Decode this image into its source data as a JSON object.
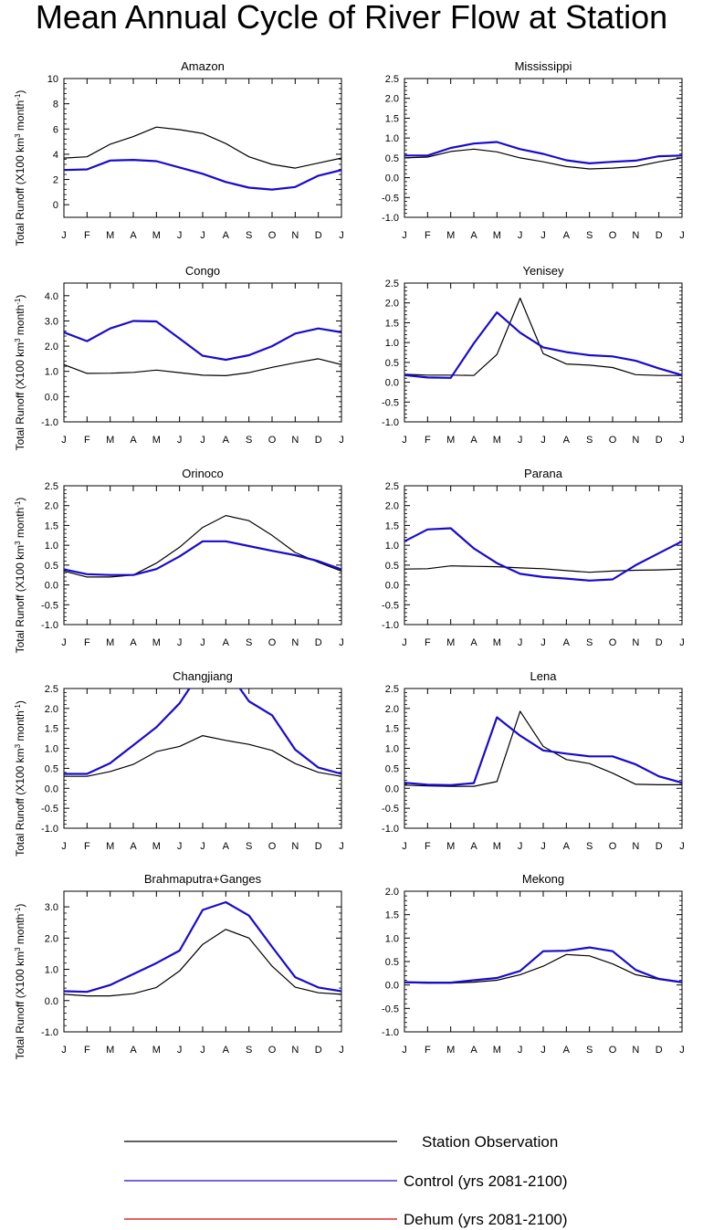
{
  "figure": {
    "title": "Mean Annual Cycle of River Flow at Station",
    "months": [
      "J",
      "F",
      "M",
      "A",
      "M",
      "J",
      "J",
      "A",
      "S",
      "O",
      "N",
      "D",
      "J"
    ],
    "legend": {
      "obs": "Station Observation",
      "control": "Control (yrs 2081-2100)",
      "dehum": "Dehum (yrs 2081-2100)"
    },
    "colors": {
      "obs": "#000000",
      "control": "#1a0acc",
      "dehum": "#e00000"
    }
  },
  "chart_data": [
    {
      "type": "line",
      "title": "Amazon",
      "ylabel": "Total Runoff (X100 km3 month-1)",
      "x": [
        "J",
        "F",
        "M",
        "A",
        "M",
        "J",
        "J",
        "A",
        "S",
        "O",
        "N",
        "D",
        "J"
      ],
      "ylim": [
        -1,
        10
      ],
      "yticks": [
        0,
        2,
        4,
        6,
        8,
        10
      ],
      "ytick_labels": [
        "0",
        "2",
        "4",
        "6",
        "8",
        "10"
      ],
      "series": [
        {
          "name": "Station Observation",
          "values": [
            3.7,
            3.8,
            4.8,
            5.4,
            6.15,
            5.95,
            5.65,
            4.85,
            3.8,
            3.2,
            2.9,
            3.3,
            3.7
          ]
        },
        {
          "name": "Control (yrs 2081-2100)",
          "values": [
            2.75,
            2.8,
            3.5,
            3.55,
            3.45,
            2.95,
            2.45,
            1.8,
            1.35,
            1.2,
            1.4,
            2.3,
            2.75
          ]
        }
      ]
    },
    {
      "type": "line",
      "title": "Mississippi",
      "ylabel": "",
      "x": [
        "J",
        "F",
        "M",
        "A",
        "M",
        "J",
        "J",
        "A",
        "S",
        "O",
        "N",
        "D",
        "J"
      ],
      "ylim": [
        -1,
        2.5
      ],
      "yticks": [
        -1,
        -0.5,
        0,
        0.5,
        1,
        1.5,
        2,
        2.5
      ],
      "ytick_labels": [
        "-1.0",
        "-0.5",
        "0.0",
        "0.5",
        "1.0",
        "1.5",
        "2.0",
        "2.5"
      ],
      "series": [
        {
          "name": "Station Observation",
          "values": [
            0.5,
            0.52,
            0.66,
            0.72,
            0.65,
            0.5,
            0.4,
            0.28,
            0.22,
            0.24,
            0.28,
            0.4,
            0.5
          ]
        },
        {
          "name": "Control (yrs 2081-2100)",
          "values": [
            0.56,
            0.56,
            0.75,
            0.86,
            0.9,
            0.72,
            0.6,
            0.44,
            0.36,
            0.4,
            0.43,
            0.54,
            0.56
          ]
        }
      ]
    },
    {
      "type": "line",
      "title": "Congo",
      "ylabel": "Total Runoff (X100 km3 month-1)",
      "x": [
        "J",
        "F",
        "M",
        "A",
        "M",
        "J",
        "J",
        "A",
        "S",
        "O",
        "N",
        "D",
        "J"
      ],
      "ylim": [
        -1,
        4.5
      ],
      "yticks": [
        -1,
        0,
        1,
        2,
        3,
        4
      ],
      "ytick_labels": [
        "-1.0",
        "0.0",
        "1.0",
        "2.0",
        "3.0",
        "4.0"
      ],
      "series": [
        {
          "name": "Station Observation",
          "values": [
            1.27,
            0.92,
            0.93,
            0.96,
            1.05,
            0.95,
            0.85,
            0.83,
            0.95,
            1.16,
            1.34,
            1.5,
            1.27
          ]
        },
        {
          "name": "Control (yrs 2081-2100)",
          "values": [
            2.55,
            2.2,
            2.7,
            3.0,
            2.98,
            2.3,
            1.62,
            1.46,
            1.64,
            2.0,
            2.5,
            2.7,
            2.55
          ]
        }
      ]
    },
    {
      "type": "line",
      "title": "Yenisey",
      "ylabel": "",
      "x": [
        "J",
        "F",
        "M",
        "A",
        "M",
        "J",
        "J",
        "A",
        "S",
        "O",
        "N",
        "D",
        "J"
      ],
      "ylim": [
        -1,
        2.5
      ],
      "yticks": [
        -1,
        -0.5,
        0,
        0.5,
        1,
        1.5,
        2,
        2.5
      ],
      "ytick_labels": [
        "-1.0",
        "-0.5",
        "0.0",
        "0.5",
        "1.0",
        "1.5",
        "2.0",
        "2.5"
      ],
      "series": [
        {
          "name": "Station Observation",
          "values": [
            0.2,
            0.18,
            0.18,
            0.17,
            0.7,
            2.12,
            0.72,
            0.46,
            0.43,
            0.37,
            0.19,
            0.17,
            0.17
          ]
        },
        {
          "name": "Control (yrs 2081-2100)",
          "values": [
            0.18,
            0.12,
            0.11,
            0.98,
            1.76,
            1.25,
            0.88,
            0.76,
            0.68,
            0.65,
            0.54,
            0.35,
            0.18
          ]
        }
      ]
    },
    {
      "type": "line",
      "title": "Orinoco",
      "ylabel": "Total Runoff (X100 km3 month-1)",
      "x": [
        "J",
        "F",
        "M",
        "A",
        "M",
        "J",
        "J",
        "A",
        "S",
        "O",
        "N",
        "D",
        "J"
      ],
      "ylim": [
        -1,
        2.5
      ],
      "yticks": [
        -1,
        -0.5,
        0,
        0.5,
        1,
        1.5,
        2,
        2.5
      ],
      "ytick_labels": [
        "-1.0",
        "-0.5",
        "0.0",
        "0.5",
        "1.0",
        "1.5",
        "2.0",
        "2.5"
      ],
      "series": [
        {
          "name": "Station Observation",
          "values": [
            0.35,
            0.2,
            0.2,
            0.25,
            0.55,
            0.95,
            1.45,
            1.75,
            1.62,
            1.25,
            0.82,
            0.57,
            0.35
          ]
        },
        {
          "name": "Control (yrs 2081-2100)",
          "values": [
            0.39,
            0.27,
            0.25,
            0.25,
            0.4,
            0.72,
            1.1,
            1.1,
            0.98,
            0.86,
            0.75,
            0.6,
            0.39
          ]
        }
      ]
    },
    {
      "type": "line",
      "title": "Parana",
      "ylabel": "",
      "x": [
        "J",
        "F",
        "M",
        "A",
        "M",
        "J",
        "J",
        "A",
        "S",
        "O",
        "N",
        "D",
        "J"
      ],
      "ylim": [
        -1,
        2.5
      ],
      "yticks": [
        -1,
        -0.5,
        0,
        0.5,
        1,
        1.5,
        2,
        2.5
      ],
      "ytick_labels": [
        "-1.0",
        "-0.5",
        "0.0",
        "0.5",
        "1.0",
        "1.5",
        "2.0",
        "2.5"
      ],
      "series": [
        {
          "name": "Station Observation",
          "values": [
            0.4,
            0.41,
            0.48,
            0.47,
            0.46,
            0.43,
            0.41,
            0.36,
            0.32,
            0.35,
            0.37,
            0.38,
            0.4
          ]
        },
        {
          "name": "Control (yrs 2081-2100)",
          "values": [
            1.1,
            1.4,
            1.43,
            0.92,
            0.55,
            0.28,
            0.2,
            0.16,
            0.11,
            0.14,
            0.5,
            0.8,
            1.1
          ]
        }
      ]
    },
    {
      "type": "line",
      "title": "Changjiang",
      "ylabel": "Total Runoff (X100 km3 month-1)",
      "x": [
        "J",
        "F",
        "M",
        "A",
        "M",
        "J",
        "J",
        "A",
        "S",
        "O",
        "N",
        "D",
        "J"
      ],
      "ylim": [
        -1,
        2.5
      ],
      "yticks": [
        -1,
        -0.5,
        0,
        0.5,
        1,
        1.5,
        2,
        2.5
      ],
      "ytick_labels": [
        "-1.0",
        "-0.5",
        "0.0",
        "0.5",
        "1.0",
        "1.5",
        "2.0",
        "2.5"
      ],
      "series": [
        {
          "name": "Station Observation",
          "values": [
            0.3,
            0.3,
            0.42,
            0.6,
            0.92,
            1.05,
            1.32,
            1.2,
            1.1,
            0.95,
            0.62,
            0.4,
            0.3
          ]
        },
        {
          "name": "Control (yrs 2081-2100)",
          "values": [
            0.36,
            0.36,
            0.63,
            1.08,
            1.53,
            2.13,
            3.0,
            3.0,
            2.18,
            1.83,
            0.97,
            0.52,
            0.36
          ]
        }
      ]
    },
    {
      "type": "line",
      "title": "Lena",
      "ylabel": "",
      "x": [
        "J",
        "F",
        "M",
        "A",
        "M",
        "J",
        "J",
        "A",
        "S",
        "O",
        "N",
        "D",
        "J"
      ],
      "ylim": [
        -1,
        2.5
      ],
      "yticks": [
        -1,
        -0.5,
        0,
        0.5,
        1,
        1.5,
        2,
        2.5
      ],
      "ytick_labels": [
        "-1.0",
        "-0.5",
        "0.0",
        "0.5",
        "1.0",
        "1.5",
        "2.0",
        "2.5"
      ],
      "series": [
        {
          "name": "Station Observation",
          "values": [
            0.08,
            0.06,
            0.05,
            0.05,
            0.17,
            1.93,
            1.05,
            0.72,
            0.62,
            0.38,
            0.1,
            0.09,
            0.09
          ]
        },
        {
          "name": "Control (yrs 2081-2100)",
          "values": [
            0.14,
            0.09,
            0.08,
            0.13,
            1.78,
            1.32,
            0.95,
            0.87,
            0.8,
            0.8,
            0.6,
            0.3,
            0.14
          ]
        }
      ]
    },
    {
      "type": "line",
      "title": "Brahmaputra+Ganges",
      "ylabel": "Total Runoff (X100 km3 month-1)",
      "x": [
        "J",
        "F",
        "M",
        "A",
        "M",
        "J",
        "J",
        "A",
        "S",
        "O",
        "N",
        "D",
        "J"
      ],
      "ylim": [
        -1,
        3.5
      ],
      "yticks": [
        -1,
        0,
        1,
        2,
        3
      ],
      "ytick_labels": [
        "-1.0",
        "0.0",
        "1.0",
        "2.0",
        "3.0"
      ],
      "series": [
        {
          "name": "Station Observation",
          "values": [
            0.2,
            0.15,
            0.15,
            0.22,
            0.42,
            0.95,
            1.8,
            2.28,
            2.0,
            1.1,
            0.43,
            0.25,
            0.2
          ]
        },
        {
          "name": "Control (yrs 2081-2100)",
          "values": [
            0.3,
            0.28,
            0.5,
            0.85,
            1.2,
            1.6,
            2.9,
            3.15,
            2.72,
            1.72,
            0.75,
            0.42,
            0.3
          ]
        }
      ]
    },
    {
      "type": "line",
      "title": "Mekong",
      "ylabel": "",
      "x": [
        "J",
        "F",
        "M",
        "A",
        "M",
        "J",
        "J",
        "A",
        "S",
        "O",
        "N",
        "D",
        "J"
      ],
      "ylim": [
        -1,
        2
      ],
      "yticks": [
        -1,
        -0.5,
        0,
        0.5,
        1,
        1.5,
        2
      ],
      "ytick_labels": [
        "-1.0",
        "-0.5",
        "0.0",
        "0.5",
        "1.0",
        "1.5",
        "2.0"
      ],
      "series": [
        {
          "name": "Station Observation",
          "values": [
            0.05,
            0.04,
            0.04,
            0.06,
            0.1,
            0.22,
            0.4,
            0.65,
            0.62,
            0.45,
            0.22,
            0.12,
            0.05
          ]
        },
        {
          "name": "Control (yrs 2081-2100)",
          "values": [
            0.06,
            0.05,
            0.05,
            0.1,
            0.15,
            0.3,
            0.72,
            0.73,
            0.8,
            0.72,
            0.32,
            0.13,
            0.06
          ]
        }
      ]
    }
  ]
}
